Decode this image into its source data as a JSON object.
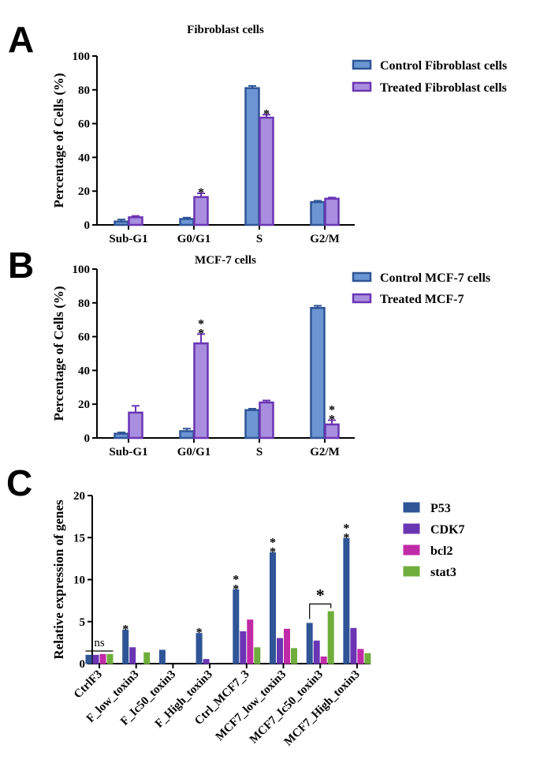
{
  "panel_letters": [
    "A",
    "B",
    "C"
  ],
  "colors": {
    "control_fill": "#6b95d3",
    "control_edge": "#2f5597",
    "treated_fill": "#a98ee0",
    "treated_edge": "#6a35b3",
    "p53": "#2f5597",
    "cdk7": "#6a35b3",
    "bcl2": "#c02aa6",
    "stat3": "#6fae3c"
  },
  "chart_data": [
    {
      "type": "bar",
      "title": "Fibroblast cells",
      "xlabel": "",
      "ylabel": "Percentage of Cells (%)",
      "ylim": [
        0,
        100
      ],
      "yticks": [
        "0",
        "20",
        "40",
        "60",
        "80",
        "100"
      ],
      "categories": [
        "Sub-G1",
        "G0/G1",
        "S",
        "G2/M"
      ],
      "series": [
        {
          "name": "Control Fibroblast cells",
          "values": [
            2,
            3.5,
            81,
            13.5
          ],
          "errors": [
            1.2,
            0.8,
            1.3,
            0.8
          ]
        },
        {
          "name": "Treated Fibroblast cells",
          "values": [
            4.5,
            16.5,
            63.5,
            15.5
          ],
          "errors": [
            0.8,
            2.2,
            1.8,
            0.7
          ]
        }
      ],
      "significance": [
        {
          "category": 1,
          "series": 1,
          "label": "*"
        },
        {
          "category": 2,
          "series": 1,
          "label": "*"
        }
      ],
      "legend_position": "top-right"
    },
    {
      "type": "bar",
      "title": "MCF-7 cells",
      "xlabel": "",
      "ylabel": "Percentage of Cells (%)",
      "ylim": [
        0,
        100
      ],
      "yticks": [
        "0",
        "20",
        "40",
        "60",
        "80",
        "100"
      ],
      "categories": [
        "Sub-G1",
        "G0/G1",
        "S",
        "G2/M"
      ],
      "series": [
        {
          "name": "Control MCF-7 cells",
          "values": [
            2.5,
            4,
            16.5,
            77
          ],
          "errors": [
            0.8,
            1.5,
            0.8,
            1.3
          ]
        },
        {
          "name": "Treated MCF-7",
          "values": [
            15,
            56,
            21,
            8
          ],
          "errors": [
            4,
            5.5,
            1.2,
            2.5
          ]
        }
      ],
      "significance": [
        {
          "category": 1,
          "series": 1,
          "label": "**"
        },
        {
          "category": 3,
          "series": 1,
          "label": "**"
        }
      ],
      "legend_position": "top-right"
    },
    {
      "type": "bar",
      "title": "",
      "xlabel": "",
      "ylabel": "Relative expression of genes",
      "ylim": [
        0,
        20
      ],
      "yticks": [
        "0",
        "5",
        "10",
        "15",
        "20"
      ],
      "categories": [
        "CtrlF3",
        "F_low_toxin3",
        "F_Ic50_toxin3",
        "F_High_toxin3",
        "Ctrl_MCF7_3",
        "MCF7_low_toxin3",
        "MCF7_Ic50_toxin3",
        "MCF7_High_toxin3"
      ],
      "series": [
        {
          "name": "P53",
          "values": [
            1,
            4,
            1.6,
            3.6,
            8.8,
            13.2,
            4.8,
            14.9
          ]
        },
        {
          "name": "CDK7",
          "values": [
            1,
            1.9,
            0,
            0.5,
            3.8,
            3,
            2.7,
            4.2
          ]
        },
        {
          "name": "bcl2",
          "values": [
            1.1,
            0,
            0,
            0,
            5.2,
            4.1,
            0.8,
            1.7
          ]
        },
        {
          "name": "stat3",
          "values": [
            1.1,
            1.3,
            0,
            0,
            1.9,
            1.8,
            6.2,
            1.2
          ]
        }
      ],
      "significance": [
        {
          "category": 1,
          "series": 0,
          "label": "*"
        },
        {
          "category": 3,
          "series": 0,
          "label": "*"
        },
        {
          "category": 4,
          "series": 0,
          "label": "**"
        },
        {
          "category": 5,
          "series": 0,
          "label": "**"
        },
        {
          "category": 7,
          "series": 0,
          "label": "**"
        }
      ],
      "ns_bracket": {
        "category": 0,
        "label": "ns"
      },
      "comparison_bracket": {
        "category": 6,
        "from_series": 0,
        "to_series": 3,
        "label": "*"
      },
      "legend_position": "top-right"
    }
  ]
}
